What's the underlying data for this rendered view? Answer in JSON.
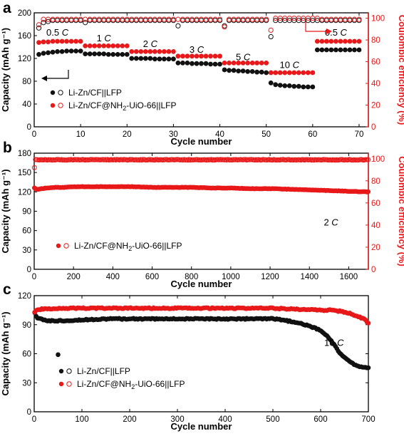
{
  "colors": {
    "black_series": "#111111",
    "red_series": "#e8191a",
    "right_axis": "#e8191a",
    "axis": "#000000"
  },
  "chart_data": [
    {
      "panel": "a",
      "type": "scatter",
      "xlabel": "Cycle number",
      "ylabel": "Capacity (mAh g⁻¹)",
      "y2label": "Coulombic efficiency (%)",
      "xlim": [
        0,
        72
      ],
      "ylim": [
        0,
        200
      ],
      "y2lim": [
        0,
        105
      ],
      "xticks": [
        0,
        10,
        20,
        30,
        40,
        50,
        60,
        70
      ],
      "yticks": [
        0,
        40,
        80,
        120,
        160,
        200
      ],
      "y2ticks": [
        0,
        20,
        40,
        60,
        80,
        100
      ],
      "rate_labels": [
        {
          "text": "0.5",
          "unit": "C",
          "x": 5,
          "y": 160
        },
        {
          "text": "1",
          "unit": "C",
          "x": 15,
          "y": 150
        },
        {
          "text": "2",
          "unit": "C",
          "x": 25,
          "y": 140
        },
        {
          "text": "3",
          "unit": "C",
          "x": 35,
          "y": 130
        },
        {
          "text": "5",
          "unit": "C",
          "x": 45,
          "y": 117
        },
        {
          "text": "10",
          "unit": "C",
          "x": 55,
          "y": 103
        },
        {
          "text": "0.5",
          "unit": "C",
          "x": 65,
          "y": 160
        }
      ],
      "legend": {
        "placement": "bottom-left",
        "entries": [
          {
            "label": "Li-Zn/CF||LFP",
            "series": "Li-Zn/CF||LFP"
          },
          {
            "label_main": "Li-Zn/CF@NH",
            "label_sub": "2",
            "label_tail": "-UiO-66||LFP",
            "series": "Li-Zn/CF@NH2-UiO-66||LFP"
          }
        ]
      },
      "series": [
        {
          "name": "Li-Zn/CF||LFP",
          "kind": "capacity",
          "color": "#111111",
          "x": [
            1,
            2,
            3,
            4,
            5,
            6,
            7,
            8,
            9,
            10,
            11,
            12,
            13,
            14,
            15,
            16,
            17,
            18,
            19,
            20,
            21,
            22,
            23,
            24,
            25,
            26,
            27,
            28,
            29,
            30,
            31,
            32,
            33,
            34,
            35,
            36,
            37,
            38,
            39,
            40,
            41,
            42,
            43,
            44,
            45,
            46,
            47,
            48,
            49,
            50,
            51,
            52,
            53,
            54,
            55,
            56,
            57,
            58,
            59,
            60,
            61,
            62,
            63,
            64,
            65,
            66,
            67,
            68,
            69,
            70
          ],
          "y": [
            127,
            129,
            130,
            131,
            132,
            132,
            133,
            133,
            133,
            133,
            128,
            128,
            128,
            128,
            128,
            127,
            127,
            127,
            127,
            127,
            120,
            120,
            120,
            120,
            120,
            119,
            119,
            119,
            119,
            119,
            112,
            112,
            112,
            111,
            111,
            111,
            111,
            110,
            110,
            110,
            100,
            99,
            99,
            98,
            98,
            97,
            97,
            96,
            96,
            95,
            77,
            74,
            73,
            72,
            72,
            71,
            71,
            70,
            70,
            70,
            135,
            135,
            135,
            135,
            135,
            135,
            135,
            135,
            135,
            135
          ]
        },
        {
          "name": "Li-Zn/CF@NH2-UiO-66||LFP",
          "kind": "capacity",
          "color": "#e8191a",
          "x": [
            1,
            2,
            3,
            4,
            5,
            6,
            7,
            8,
            9,
            10,
            11,
            12,
            13,
            14,
            15,
            16,
            17,
            18,
            19,
            20,
            21,
            22,
            23,
            24,
            25,
            26,
            27,
            28,
            29,
            30,
            31,
            32,
            33,
            34,
            35,
            36,
            37,
            38,
            39,
            40,
            41,
            42,
            43,
            44,
            45,
            46,
            47,
            48,
            49,
            50,
            51,
            52,
            53,
            54,
            55,
            56,
            57,
            58,
            59,
            60,
            61,
            62,
            63,
            64,
            65,
            66,
            67,
            68,
            69,
            70
          ],
          "y": [
            148,
            149,
            149,
            150,
            150,
            150,
            150,
            150,
            150,
            150,
            142,
            142,
            142,
            142,
            142,
            142,
            142,
            142,
            142,
            142,
            132,
            132,
            132,
            132,
            132,
            132,
            132,
            132,
            132,
            132,
            124,
            124,
            124,
            124,
            124,
            124,
            124,
            124,
            124,
            124,
            112,
            112,
            112,
            112,
            112,
            112,
            112,
            112,
            112,
            112,
            95,
            95,
            95,
            95,
            95,
            95,
            95,
            95,
            95,
            95,
            150,
            150,
            150,
            150,
            150,
            150,
            150,
            150,
            150,
            150
          ]
        },
        {
          "name": "Li-Zn/CF||LFP",
          "kind": "efficiency",
          "color": "#111111",
          "x": [
            1,
            2,
            3,
            4,
            5,
            6,
            7,
            8,
            9,
            10,
            11,
            12,
            13,
            14,
            15,
            16,
            17,
            18,
            19,
            20,
            21,
            22,
            23,
            24,
            25,
            26,
            27,
            28,
            29,
            30,
            31,
            32,
            33,
            34,
            35,
            36,
            37,
            38,
            39,
            40,
            41,
            42,
            43,
            44,
            45,
            46,
            47,
            48,
            49,
            50,
            51,
            52,
            53,
            54,
            55,
            56,
            57,
            58,
            59,
            60,
            61,
            62,
            63,
            64,
            65,
            66,
            67,
            68,
            69,
            70
          ],
          "y": [
            91,
            96,
            97,
            98,
            98,
            98,
            98,
            98,
            98,
            98,
            96,
            98,
            98,
            98,
            98,
            98,
            98,
            98,
            98,
            98,
            98,
            98,
            98,
            98,
            98,
            98,
            98,
            98,
            98,
            98,
            93,
            98,
            98,
            98,
            98,
            98,
            98,
            98,
            98,
            98,
            93,
            98,
            98,
            98,
            98,
            98,
            98,
            98,
            98,
            98,
            83,
            98,
            98,
            98,
            98,
            98,
            98,
            98,
            98,
            98,
            98,
            98,
            98,
            98,
            98,
            98,
            98,
            98,
            98,
            98
          ]
        },
        {
          "name": "Li-Zn/CF@NH2-UiO-66||LFP",
          "kind": "efficiency",
          "color": "#e8191a",
          "x": [
            1,
            2,
            3,
            4,
            5,
            6,
            7,
            8,
            9,
            10,
            11,
            12,
            13,
            14,
            15,
            16,
            17,
            18,
            19,
            20,
            21,
            22,
            23,
            24,
            25,
            26,
            27,
            28,
            29,
            30,
            31,
            32,
            33,
            34,
            35,
            36,
            37,
            38,
            39,
            40,
            41,
            42,
            43,
            44,
            45,
            46,
            47,
            48,
            49,
            50,
            51,
            52,
            53,
            54,
            55,
            56,
            57,
            58,
            59,
            60,
            61,
            62,
            63,
            64,
            65,
            66,
            67,
            68,
            69,
            70
          ],
          "y": [
            94,
            99,
            99,
            99,
            99,
            99,
            99,
            99,
            99,
            99,
            99,
            99,
            99,
            99,
            99,
            99,
            99,
            99,
            99,
            99,
            99,
            99,
            99,
            99,
            99,
            99,
            99,
            99,
            99,
            99,
            99,
            99,
            99,
            99,
            99,
            99,
            99,
            99,
            99,
            99,
            92,
            99,
            99,
            99,
            99,
            99,
            99,
            99,
            99,
            99,
            89,
            100,
            100,
            100,
            100,
            100,
            100,
            100,
            100,
            100,
            100,
            99,
            99,
            99,
            99,
            99,
            99,
            99,
            99,
            99
          ]
        }
      ]
    },
    {
      "panel": "b",
      "type": "scatter",
      "xlabel": "Cycle number",
      "ylabel": "Capacity (mAh g⁻¹)",
      "y2label": "Coulombic efficiency (%)",
      "xlim": [
        0,
        1700
      ],
      "ylim": [
        0,
        180
      ],
      "y2lim": [
        0,
        105
      ],
      "xticks": [
        0,
        200,
        400,
        600,
        800,
        1000,
        1200,
        1400,
        1600
      ],
      "yticks": [
        0,
        30,
        60,
        90,
        120,
        150,
        180
      ],
      "y2ticks": [
        0,
        20,
        40,
        60,
        80,
        100
      ],
      "rate_labels": [
        {
          "text": "2",
          "unit": "C",
          "x": 1510,
          "y": 68
        }
      ],
      "legend": {
        "placement": "center-left",
        "entries": [
          {
            "label_main": "Li-Zn/CF@NH",
            "label_sub": "2",
            "label_tail": "-UiO-66||LFP",
            "series": "Li-Zn/CF@NH2-UiO-66||LFP"
          }
        ]
      },
      "series": [
        {
          "name": "Li-Zn/CF@NH2-UiO-66||LFP",
          "kind": "capacity",
          "color": "#e8191a",
          "x": [
            1,
            10,
            20,
            40,
            60,
            100,
            150,
            200,
            250,
            300,
            400,
            500,
            600,
            700,
            800,
            900,
            1000,
            1100,
            1200,
            1300,
            1400,
            1500,
            1600,
            1700
          ],
          "y": [
            126,
            124,
            124,
            125,
            126,
            127,
            127,
            128,
            128,
            128,
            128,
            128,
            127,
            127,
            127,
            126,
            126,
            125,
            125,
            124,
            123,
            122,
            121,
            120
          ]
        },
        {
          "name": "Li-Zn/CF@NH2-UiO-66||LFP",
          "kind": "efficiency",
          "color": "#e8191a",
          "x": [
            1,
            3,
            5,
            10,
            50,
            100,
            200,
            300,
            400,
            500,
            600,
            700,
            800,
            900,
            1000,
            1100,
            1200,
            1300,
            1400,
            1500,
            1600,
            1700
          ],
          "y": [
            92,
            98,
            99,
            99,
            99,
            99,
            99,
            99,
            99,
            99,
            99,
            99,
            99,
            99,
            99,
            99,
            99,
            99,
            99,
            99,
            99,
            99
          ]
        }
      ]
    },
    {
      "panel": "c",
      "type": "scatter",
      "xlabel": "Cycle number",
      "ylabel": "Capacity (mAh g⁻¹)",
      "xlim": [
        0,
        700
      ],
      "ylim": [
        0,
        120
      ],
      "xticks": [
        0,
        100,
        200,
        300,
        400,
        500,
        600,
        700
      ],
      "yticks": [
        0,
        30,
        60,
        90,
        120
      ],
      "rate_labels": [
        {
          "text": "10",
          "unit": "C",
          "x": 628,
          "y": 68
        }
      ],
      "legend": {
        "placement": "bottom-left",
        "entries": [
          {
            "label": "Li-Zn/CF||LFP",
            "series": "Li-Zn/CF||LFP"
          },
          {
            "label_main": "Li-Zn/CF@NH",
            "label_sub": "2",
            "label_tail": "-UiO-66||LFP",
            "series": "Li-Zn/CF@NH2-UiO-66||LFP"
          }
        ]
      },
      "series": [
        {
          "name": "Li-Zn/CF||LFP",
          "kind": "capacity",
          "color": "#111111",
          "x": [
            1,
            5,
            10,
            20,
            30,
            50,
            100,
            150,
            200,
            250,
            300,
            350,
            400,
            450,
            500,
            520,
            540,
            560,
            580,
            600,
            610,
            620,
            630,
            640,
            650,
            660,
            670,
            680,
            690,
            700
          ],
          "y": [
            102,
            98,
            96,
            95,
            94,
            94,
            95,
            96,
            96,
            96,
            96,
            96,
            96,
            96,
            96,
            95,
            93,
            91,
            88,
            84,
            80,
            75,
            68,
            61,
            56,
            52,
            49,
            47,
            46,
            45
          ]
        },
        {
          "name": "Li-Zn/CF||LFP outlier",
          "kind": "capacity",
          "color": "#111111",
          "x": [
            50
          ],
          "y": [
            59
          ]
        },
        {
          "name": "Li-Zn/CF@NH2-UiO-66||LFP",
          "kind": "capacity",
          "color": "#e8191a",
          "x": [
            1,
            5,
            10,
            20,
            50,
            100,
            150,
            200,
            250,
            300,
            350,
            400,
            450,
            500,
            550,
            600,
            620,
            640,
            660,
            670,
            680,
            690,
            700
          ],
          "y": [
            103,
            105,
            106,
            106,
            107,
            107,
            107,
            107,
            107,
            107,
            107,
            107,
            107,
            107,
            106,
            105,
            105,
            104,
            102,
            100,
            98,
            96,
            92
          ]
        }
      ]
    }
  ]
}
